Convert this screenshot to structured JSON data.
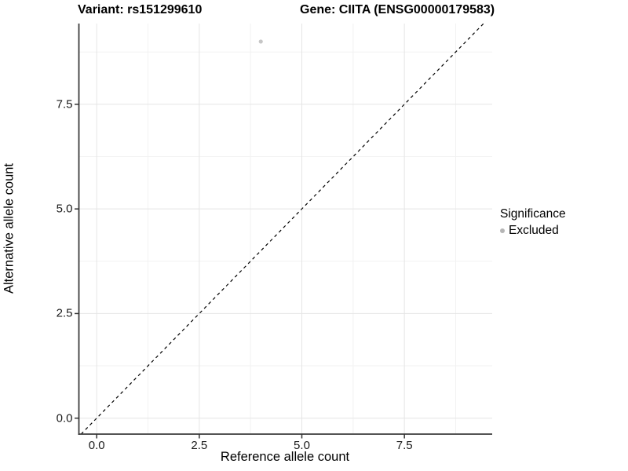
{
  "figure": {
    "title_left": "Variant: rs151299610",
    "title_right": "Gene: CIITA (ENSG00000179583)"
  },
  "chart_data": {
    "type": "scatter",
    "title": "Variant: rs151299610  |  Gene: CIITA (ENSG00000179583)",
    "xlabel": "Reference allele count",
    "ylabel": "Alternative allele count",
    "xlim": [
      -0.434,
      9.64
    ],
    "ylim": [
      -0.381,
      9.43
    ],
    "xticks": [
      0,
      2.5,
      5,
      7.5
    ],
    "yticks": [
      0,
      2.5,
      5,
      7.5
    ],
    "xtick_labels": [
      "0.0",
      "2.5",
      "5.0",
      "7.5"
    ],
    "ytick_labels": [
      "0.0",
      "2.5",
      "5.0",
      "7.5"
    ],
    "x_minor_ticks": [
      1.25,
      3.75,
      6.25,
      8.75
    ],
    "y_minor_ticks": [
      1.25,
      3.75,
      6.25,
      8.75
    ],
    "grid": true,
    "legend_position": "right",
    "series": [
      {
        "name": "Excluded",
        "marker": "circle",
        "color": "#c6c6c6",
        "points": [
          {
            "x": 4,
            "y": 9
          }
        ]
      }
    ],
    "reference_line": {
      "kind": "identity y=x",
      "style": "dashed",
      "color": "#000000"
    },
    "legend": {
      "title": "Significance",
      "items": [
        {
          "label": "Excluded",
          "marker": "circle",
          "color": "#b5b5b5"
        }
      ]
    },
    "colors": {
      "background": "#ffffff",
      "grid_major": "#e5e5e5",
      "grid_minor": "#f2f2f2",
      "axis_line": "#3c3c3c",
      "tick_mark": "#333333",
      "tick_text": "#1a1a1a",
      "point": "#c6c6c6"
    }
  }
}
